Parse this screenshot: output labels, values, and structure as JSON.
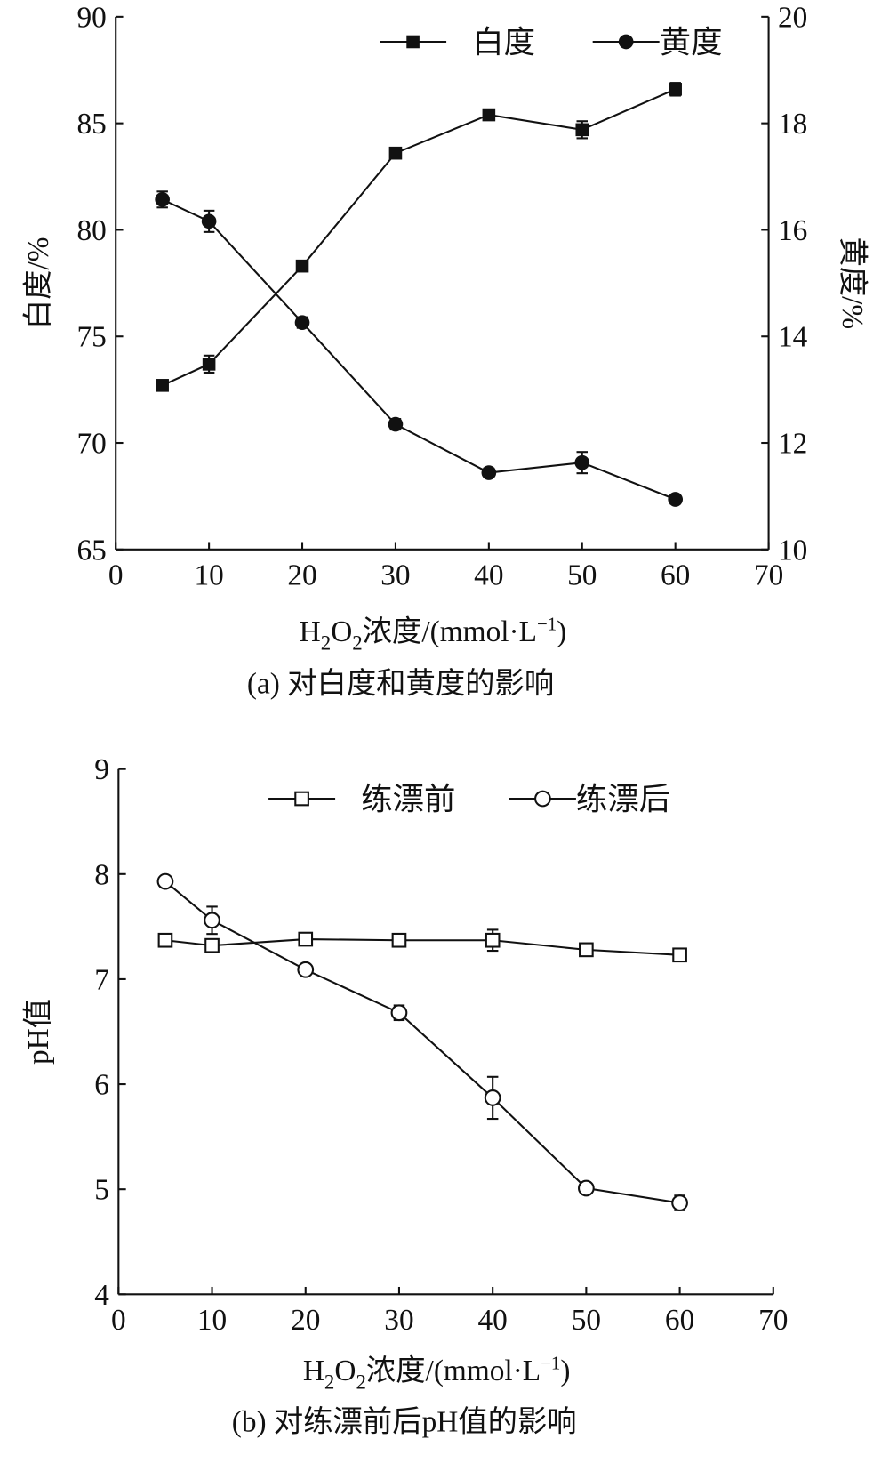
{
  "chart_data": [
    {
      "type": "line",
      "caption": "(a) 对白度和黄度的影响",
      "xlabel": {
        "pre": "H",
        "sub1": "2",
        "mid": "O",
        "sub2": "2",
        "post": "浓度/(mmol·L",
        "sup": "−1",
        "end": ")"
      },
      "ylabel_left": "白度/%",
      "ylabel_right": "黄度/%",
      "xlim": [
        0,
        70
      ],
      "xticks": [
        0,
        10,
        20,
        30,
        40,
        50,
        60,
        70
      ],
      "ylim_left": [
        65,
        90
      ],
      "yticks_left": [
        65,
        70,
        75,
        80,
        85,
        90
      ],
      "ylim_right": [
        10,
        20
      ],
      "yticks_right": [
        10,
        12,
        14,
        16,
        18,
        20
      ],
      "legend_position": "top-right",
      "series": [
        {
          "name": "白度",
          "axis": "left",
          "marker": "filled-square",
          "x": [
            5,
            10,
            20,
            30,
            40,
            50,
            60
          ],
          "y": [
            72.7,
            73.7,
            78.3,
            83.6,
            85.4,
            84.7,
            86.6
          ],
          "err": [
            0.2,
            0.4,
            0.2,
            0.2,
            0.2,
            0.4,
            0.3
          ]
        },
        {
          "name": "黄度",
          "axis": "right",
          "marker": "filled-circle",
          "x": [
            5,
            10,
            20,
            30,
            40,
            50,
            60
          ],
          "y": [
            16.57,
            16.16,
            14.26,
            12.35,
            11.44,
            11.63,
            10.94
          ],
          "err": [
            0.15,
            0.2,
            0.1,
            0.1,
            0.08,
            0.2,
            0.08
          ]
        }
      ]
    },
    {
      "type": "line",
      "caption": "(b) 对练漂前后pH值的影响",
      "xlabel": {
        "pre": "H",
        "sub1": "2",
        "mid": "O",
        "sub2": "2",
        "post": "浓度/(mmol·L",
        "sup": "−1",
        "end": ")"
      },
      "ylabel_left": "pH值",
      "xlim": [
        0,
        70
      ],
      "xticks": [
        0,
        10,
        20,
        30,
        40,
        50,
        60,
        70
      ],
      "ylim_left": [
        4,
        9
      ],
      "yticks_left": [
        4,
        5,
        6,
        7,
        8,
        9
      ],
      "legend_position": "top-right",
      "series": [
        {
          "name": "练漂前",
          "axis": "left",
          "marker": "open-square",
          "x": [
            5,
            10,
            20,
            30,
            40,
            50,
            60
          ],
          "y": [
            7.37,
            7.32,
            7.38,
            7.37,
            7.37,
            7.28,
            7.23
          ],
          "err": [
            0.03,
            0.05,
            0.04,
            0.05,
            0.1,
            0.03,
            0.04
          ]
        },
        {
          "name": "练漂后",
          "axis": "left",
          "marker": "open-circle",
          "x": [
            5,
            10,
            20,
            30,
            40,
            50,
            60
          ],
          "y": [
            7.93,
            7.56,
            7.09,
            6.68,
            5.87,
            5.01,
            4.87
          ],
          "err": [
            0.04,
            0.13,
            0.04,
            0.07,
            0.2,
            0.03,
            0.07
          ]
        }
      ]
    }
  ]
}
